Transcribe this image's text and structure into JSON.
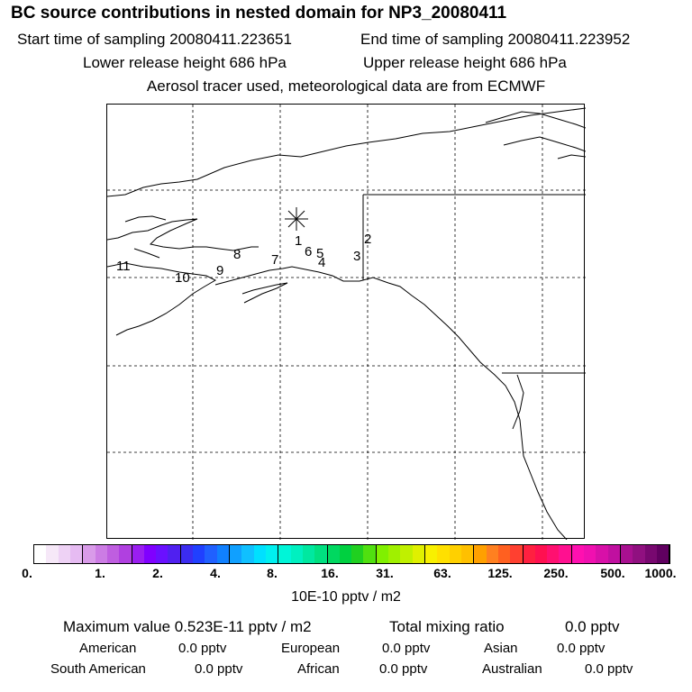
{
  "header": {
    "title": "BC  source contributions in nested domain for NP3_20080411",
    "start_time": "Start time of sampling 20080411.223651",
    "end_time": "End time of sampling 20080411.223952",
    "lower_release": "Lower release height  686 hPa",
    "upper_release": "Upper release height  686 hPa",
    "tracer_info": "Aerosol tracer used, meteorological data are from ECMWF"
  },
  "map": {
    "release_marker": "release-location-asterisk",
    "labels": [
      "1",
      "2",
      "3",
      "4",
      "5",
      "6",
      "7",
      "8",
      "9",
      "10",
      "11"
    ]
  },
  "colorbar": {
    "colors": [
      "#ffffff",
      "#f6e8f8",
      "#eed2f5",
      "#e6bbf2",
      "#d99be9",
      "#cc7ce4",
      "#bf5ee0",
      "#b040e0",
      "#9a1ef0",
      "#8000ff",
      "#6a10ff",
      "#5020f0",
      "#3b2cf0",
      "#2040ff",
      "#2060ff",
      "#1080ff",
      "#10a0ff",
      "#10c0ff",
      "#00e0ff",
      "#00f0f0",
      "#00f5d8",
      "#00f0c0",
      "#00e8a0",
      "#00e080",
      "#00d860",
      "#00d040",
      "#20d020",
      "#50e010",
      "#80f000",
      "#a0f000",
      "#c0f000",
      "#e0f000",
      "#f8f000",
      "#ffe000",
      "#ffd000",
      "#ffc000",
      "#ffa000",
      "#ff8020",
      "#ff6020",
      "#ff4030",
      "#ff2040",
      "#ff1050",
      "#ff1070",
      "#ff1090",
      "#ff10b0",
      "#f010b0",
      "#d810a8",
      "#c010a0",
      "#a81090",
      "#901080",
      "#780870",
      "#600060"
    ],
    "ticks": [
      "0.",
      "1.",
      "2.",
      "4.",
      "8.",
      "16.",
      "31.",
      "63.",
      "125.",
      "250.",
      "500.",
      "1000."
    ],
    "unit": "10E-10 pptv / m2"
  },
  "stats": {
    "max_label": "Maximum value  0.523E-11 pptv / m2",
    "total_label": "Total mixing ratio",
    "total_value": "0.0 pptv",
    "american_label": "American",
    "american_value": "0.0 pptv",
    "european_label": "European",
    "european_value": "0.0 pptv",
    "asian_label": "Asian",
    "asian_value": "0.0 pptv",
    "south_american_label": "South American",
    "south_american_value": "0.0 pptv",
    "african_label": "African",
    "african_value": "0.0 pptv",
    "australian_label": "Australian",
    "australian_value": "0.0 pptv"
  }
}
